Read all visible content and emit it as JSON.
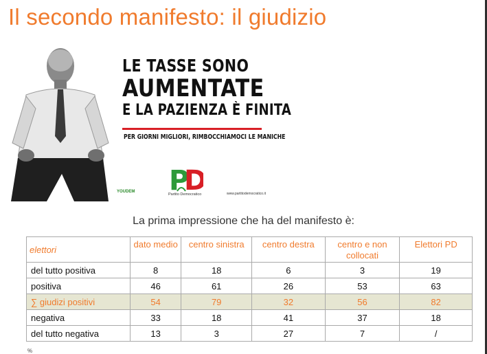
{
  "slide": {
    "title": "Il secondo manifesto: il giudizio"
  },
  "poster": {
    "headline_line1": "LE TASSE SONO",
    "headline_line2": "AUMENTATE",
    "headline_line3": "E LA PAZIENZA È FINITA",
    "tagline": "PER GIORNI MIGLIORI, RIMBOCCHIAMOCI LE MANICHE",
    "logo_text": "PD",
    "logo_caption": "Partito Democratico",
    "youdem": "YOUDEM",
    "site": "www.partitodemocratico.it",
    "colors": {
      "red": "#d81f26",
      "green": "#2e9a3a",
      "text": "#111111"
    }
  },
  "question": "La prima impressione che ha del manifesto è:",
  "table": {
    "headers": [
      "elettori",
      "dato medio",
      "centro sinistra",
      "centro destra",
      "centro e non collocati",
      "Elettori PD"
    ],
    "rows": [
      {
        "label": "del tutto positiva",
        "values": [
          "8",
          "18",
          "6",
          "3",
          "19"
        ]
      },
      {
        "label": "positiva",
        "values": [
          "46",
          "61",
          "26",
          "53",
          "63"
        ]
      },
      {
        "label": "∑ giudizi positivi",
        "values": [
          "54",
          "79",
          "32",
          "56",
          "82"
        ]
      },
      {
        "label": "negativa",
        "values": [
          "33",
          "18",
          "41",
          "37",
          "18"
        ]
      },
      {
        "label": "del tutto negativa",
        "values": [
          "13",
          "3",
          "27",
          "7",
          "/"
        ]
      }
    ]
  },
  "footnote": "%",
  "theme": {
    "accent": "#f07b2d",
    "highlight_bg": "#e6e6d2"
  }
}
